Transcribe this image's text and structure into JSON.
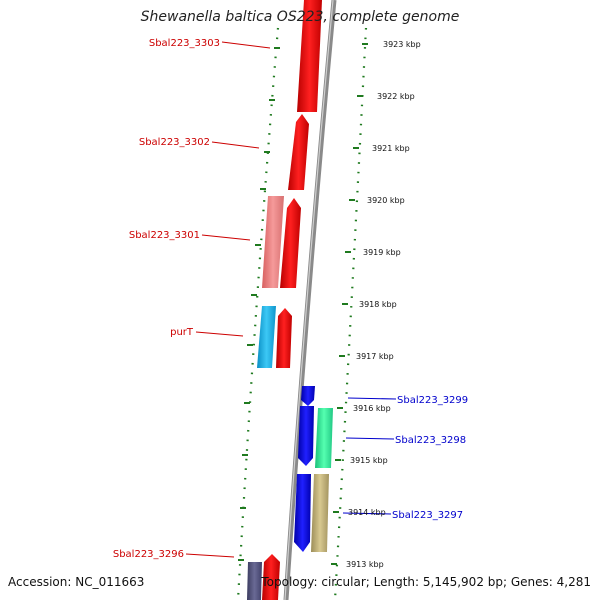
{
  "title": "Shewanella baltica OS223, complete genome",
  "footer": {
    "accession": "Accession: NC_011663",
    "summary": "Topology: circular; Length: 5,145,902 bp; Genes: 4,281"
  },
  "axis": {
    "unit": "kbp",
    "ticks": [
      "3923 kbp",
      "3922 kbp",
      "3921 kbp",
      "3920 kbp",
      "3919 kbp",
      "3918 kbp",
      "3917 kbp",
      "3916 kbp",
      "3915 kbp",
      "3914 kbp",
      "3913 kbp"
    ]
  },
  "gene_labels": [
    {
      "text": "Sbal223_3303",
      "color": "#cc0000"
    },
    {
      "text": "Sbal223_3302",
      "color": "#cc0000"
    },
    {
      "text": "Sbal223_3301",
      "color": "#cc0000"
    },
    {
      "text": "purT",
      "color": "#cc0000"
    },
    {
      "text": "Sbal223_3299",
      "color": "#0000cc"
    },
    {
      "text": "Sbal223_3298",
      "color": "#0000cc"
    },
    {
      "text": "Sbal223_3297",
      "color": "#0000cc"
    },
    {
      "text": "Sbal223_3296",
      "color": "#cc0000"
    }
  ],
  "colors": {
    "forward_gene": "#ff0000",
    "reverse_gene": "#0000ee",
    "backbone": "#888888",
    "tick_marks": "#1f7a1f",
    "cds_light_red": "#f08080",
    "cds_cyan": "#1fb5ea",
    "cds_green": "#33ee99",
    "cds_tan": "#c2b27a",
    "cds_slate": "#55557a"
  }
}
